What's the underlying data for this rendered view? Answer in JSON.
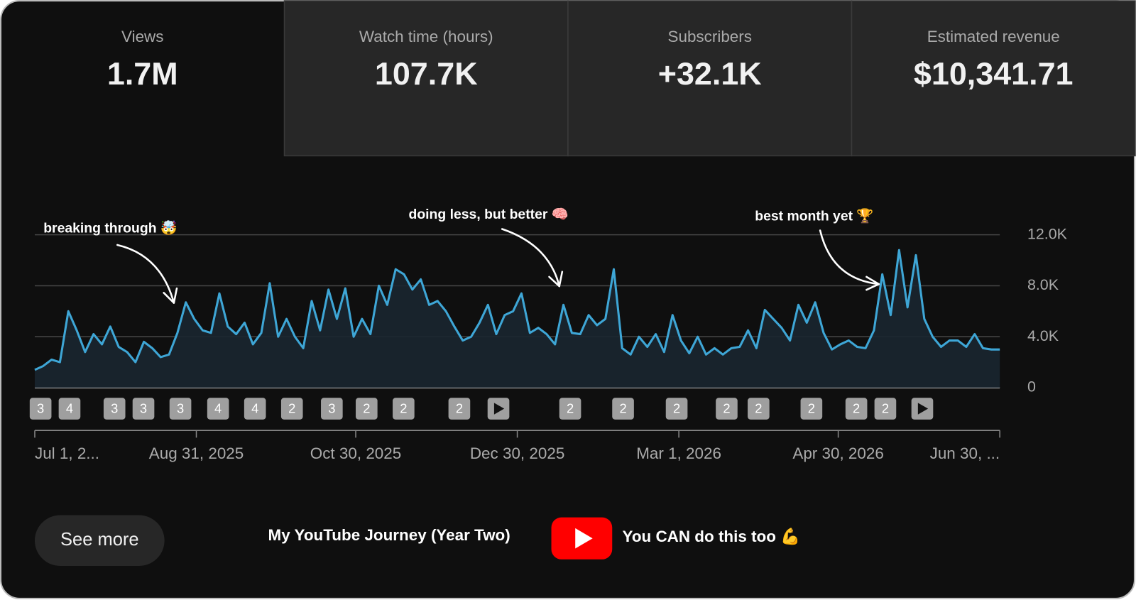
{
  "cards": [
    {
      "label": "Views",
      "value": "1.7M"
    },
    {
      "label": "Watch time (hours)",
      "value": "107.7K"
    },
    {
      "label": "Subscribers",
      "value": "+32.1K"
    },
    {
      "label": "Estimated revenue",
      "value": "$10,341.71"
    }
  ],
  "chart_data": {
    "type": "line",
    "color": "#3ea6d6",
    "values": [
      1400,
      1700,
      2200,
      2000,
      6000,
      4500,
      2800,
      4200,
      3400,
      4800,
      3200,
      2800,
      2000,
      3600,
      3100,
      2400,
      2600,
      4300,
      6700,
      5400,
      4500,
      4300,
      7400,
      4800,
      4200,
      5100,
      3400,
      4300,
      8200,
      4000,
      5400,
      4000,
      3100,
      6800,
      4500,
      7700,
      5400,
      7800,
      4000,
      5400,
      4200,
      8000,
      6500,
      9300,
      8900,
      7700,
      8500,
      6500,
      6800,
      6000,
      4800,
      3700,
      4000,
      5100,
      6500,
      4200,
      5700,
      6000,
      7400,
      4300,
      4700,
      4200,
      3400,
      6500,
      4300,
      4200,
      5700,
      4900,
      5400,
      9300,
      3100,
      2600,
      4000,
      3200,
      4200,
      2800,
      5700,
      3700,
      2700,
      4000,
      2600,
      3100,
      2600,
      3100,
      3200,
      4500,
      3100,
      6100,
      5400,
      4700,
      3700,
      6500,
      5100,
      6700,
      4300,
      3000,
      3400,
      3700,
      3200,
      3100,
      4500,
      8900,
      5700,
      10800,
      6300,
      10400,
      5400,
      4000,
      3200,
      3700,
      3700,
      3200,
      4200,
      3100,
      3000,
      3000
    ],
    "ylim": [
      0,
      12000
    ],
    "yticks": [
      0,
      {
        "value": 4000,
        "label": "4.0K"
      },
      {
        "value": 8000,
        "label": "8.0K"
      },
      {
        "value": 12000,
        "label": "12.0K"
      }
    ],
    "grid": true,
    "x_tick_labels": [
      "Jul 1, 2...",
      "Aug 31, 2025",
      "Oct 30, 2025",
      "Dec 30, 2025",
      "Mar 1, 2026",
      "Apr 30, 2026",
      "Jun 30, ..."
    ],
    "markers": [
      "3",
      "4",
      "3",
      "3",
      "3",
      "4",
      "4",
      "2",
      "3",
      "2",
      "2",
      "2",
      null,
      "2",
      "2",
      "2",
      "2",
      "2",
      "2",
      "2",
      "2",
      null
    ],
    "annotations": [
      "breaking through 🤯",
      "doing less, but better 🧠",
      "best month yet 🏆"
    ]
  },
  "footer": {
    "button": "See more",
    "title": "My YouTube Journey (Year Two)",
    "tagline": "You CAN do this too 💪"
  }
}
